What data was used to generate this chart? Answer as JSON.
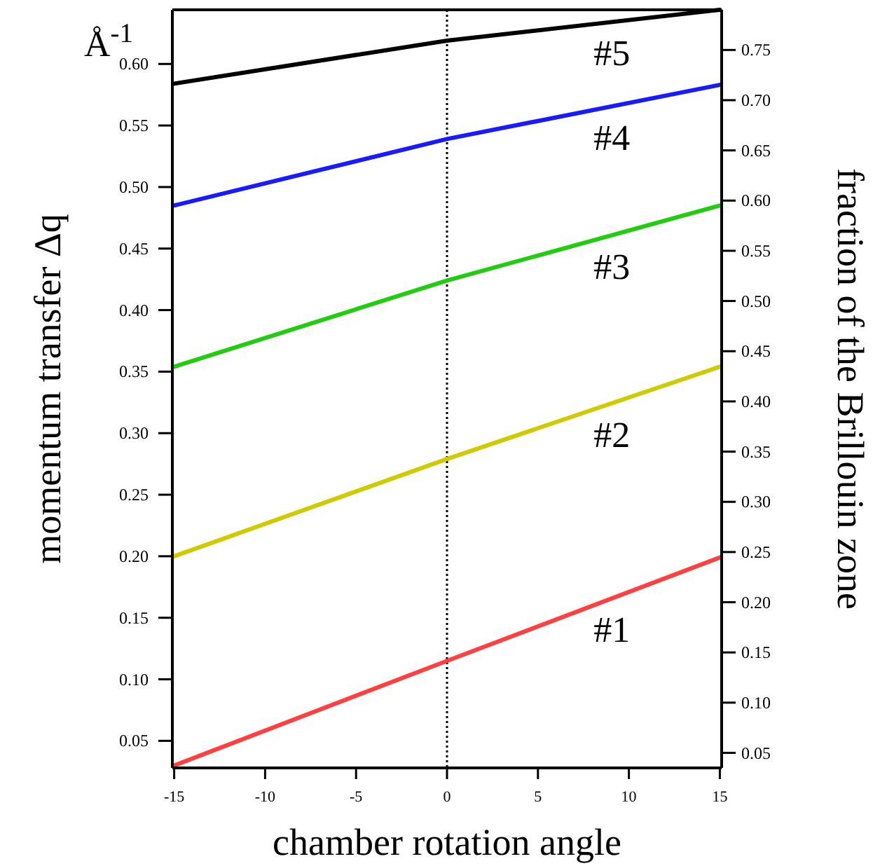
{
  "chart_data": {
    "type": "line",
    "xlabel": "chamber rotation angle",
    "ylabel": "momentum transfer Δq",
    "y2label": "fraction of the Brillouin zone",
    "x": [
      -15,
      0,
      15
    ],
    "series": [
      {
        "name": "#1",
        "color": "#ff4040",
        "values": [
          0.03,
          0.115,
          0.199
        ]
      },
      {
        "name": "#2",
        "color": "#cccc00",
        "values": [
          0.2,
          0.279,
          0.354
        ]
      },
      {
        "name": "#3",
        "color": "#22cc11",
        "values": [
          0.354,
          0.424,
          0.485
        ]
      },
      {
        "name": "#4",
        "color": "#1a1aff",
        "values": [
          0.485,
          0.539,
          0.583
        ]
      },
      {
        "name": "#5",
        "color": "#000000",
        "values": [
          0.584,
          0.619,
          0.644
        ]
      }
    ],
    "xlim": [
      -15.1,
      15.1
    ],
    "xticks": [
      -15,
      -10,
      -5,
      0,
      5,
      10,
      15
    ],
    "ylim": [
      0.028,
      0.644
    ],
    "yticks": [
      0.05,
      {
        "value": 0.1,
        "label": "0.10"
      },
      0.15,
      {
        "value": 0.2,
        "label": "0.20"
      },
      0.25,
      {
        "value": 0.3,
        "label": "0.30"
      },
      0.35,
      {
        "value": 0.4,
        "label": "0.40"
      },
      0.45,
      {
        "value": 0.5,
        "label": "0.50"
      },
      0.55,
      {
        "value": 0.6,
        "label": "0.60"
      }
    ],
    "y2lim": [
      0.035,
      0.79
    ],
    "y2ticks": [
      0.05,
      {
        "value": 0.1,
        "label": "0.10"
      },
      0.15,
      {
        "value": 0.2,
        "label": "0.20"
      },
      0.25,
      {
        "value": 0.3,
        "label": "0.30"
      },
      0.35,
      {
        "value": 0.4,
        "label": "0.40"
      },
      0.45,
      {
        "value": 0.5,
        "label": "0.50"
      },
      0.55,
      {
        "value": 0.6,
        "label": "0.60"
      },
      0.65,
      {
        "value": 0.7,
        "label": "0.70"
      },
      0.75
    ],
    "ref_lines": [
      {
        "axis": "x",
        "value": 0,
        "color": "#000000",
        "line_style": "dotted"
      }
    ],
    "annotations": [
      "Å$^{-1}$"
    ],
    "marker": "none",
    "line_style": "solid"
  }
}
